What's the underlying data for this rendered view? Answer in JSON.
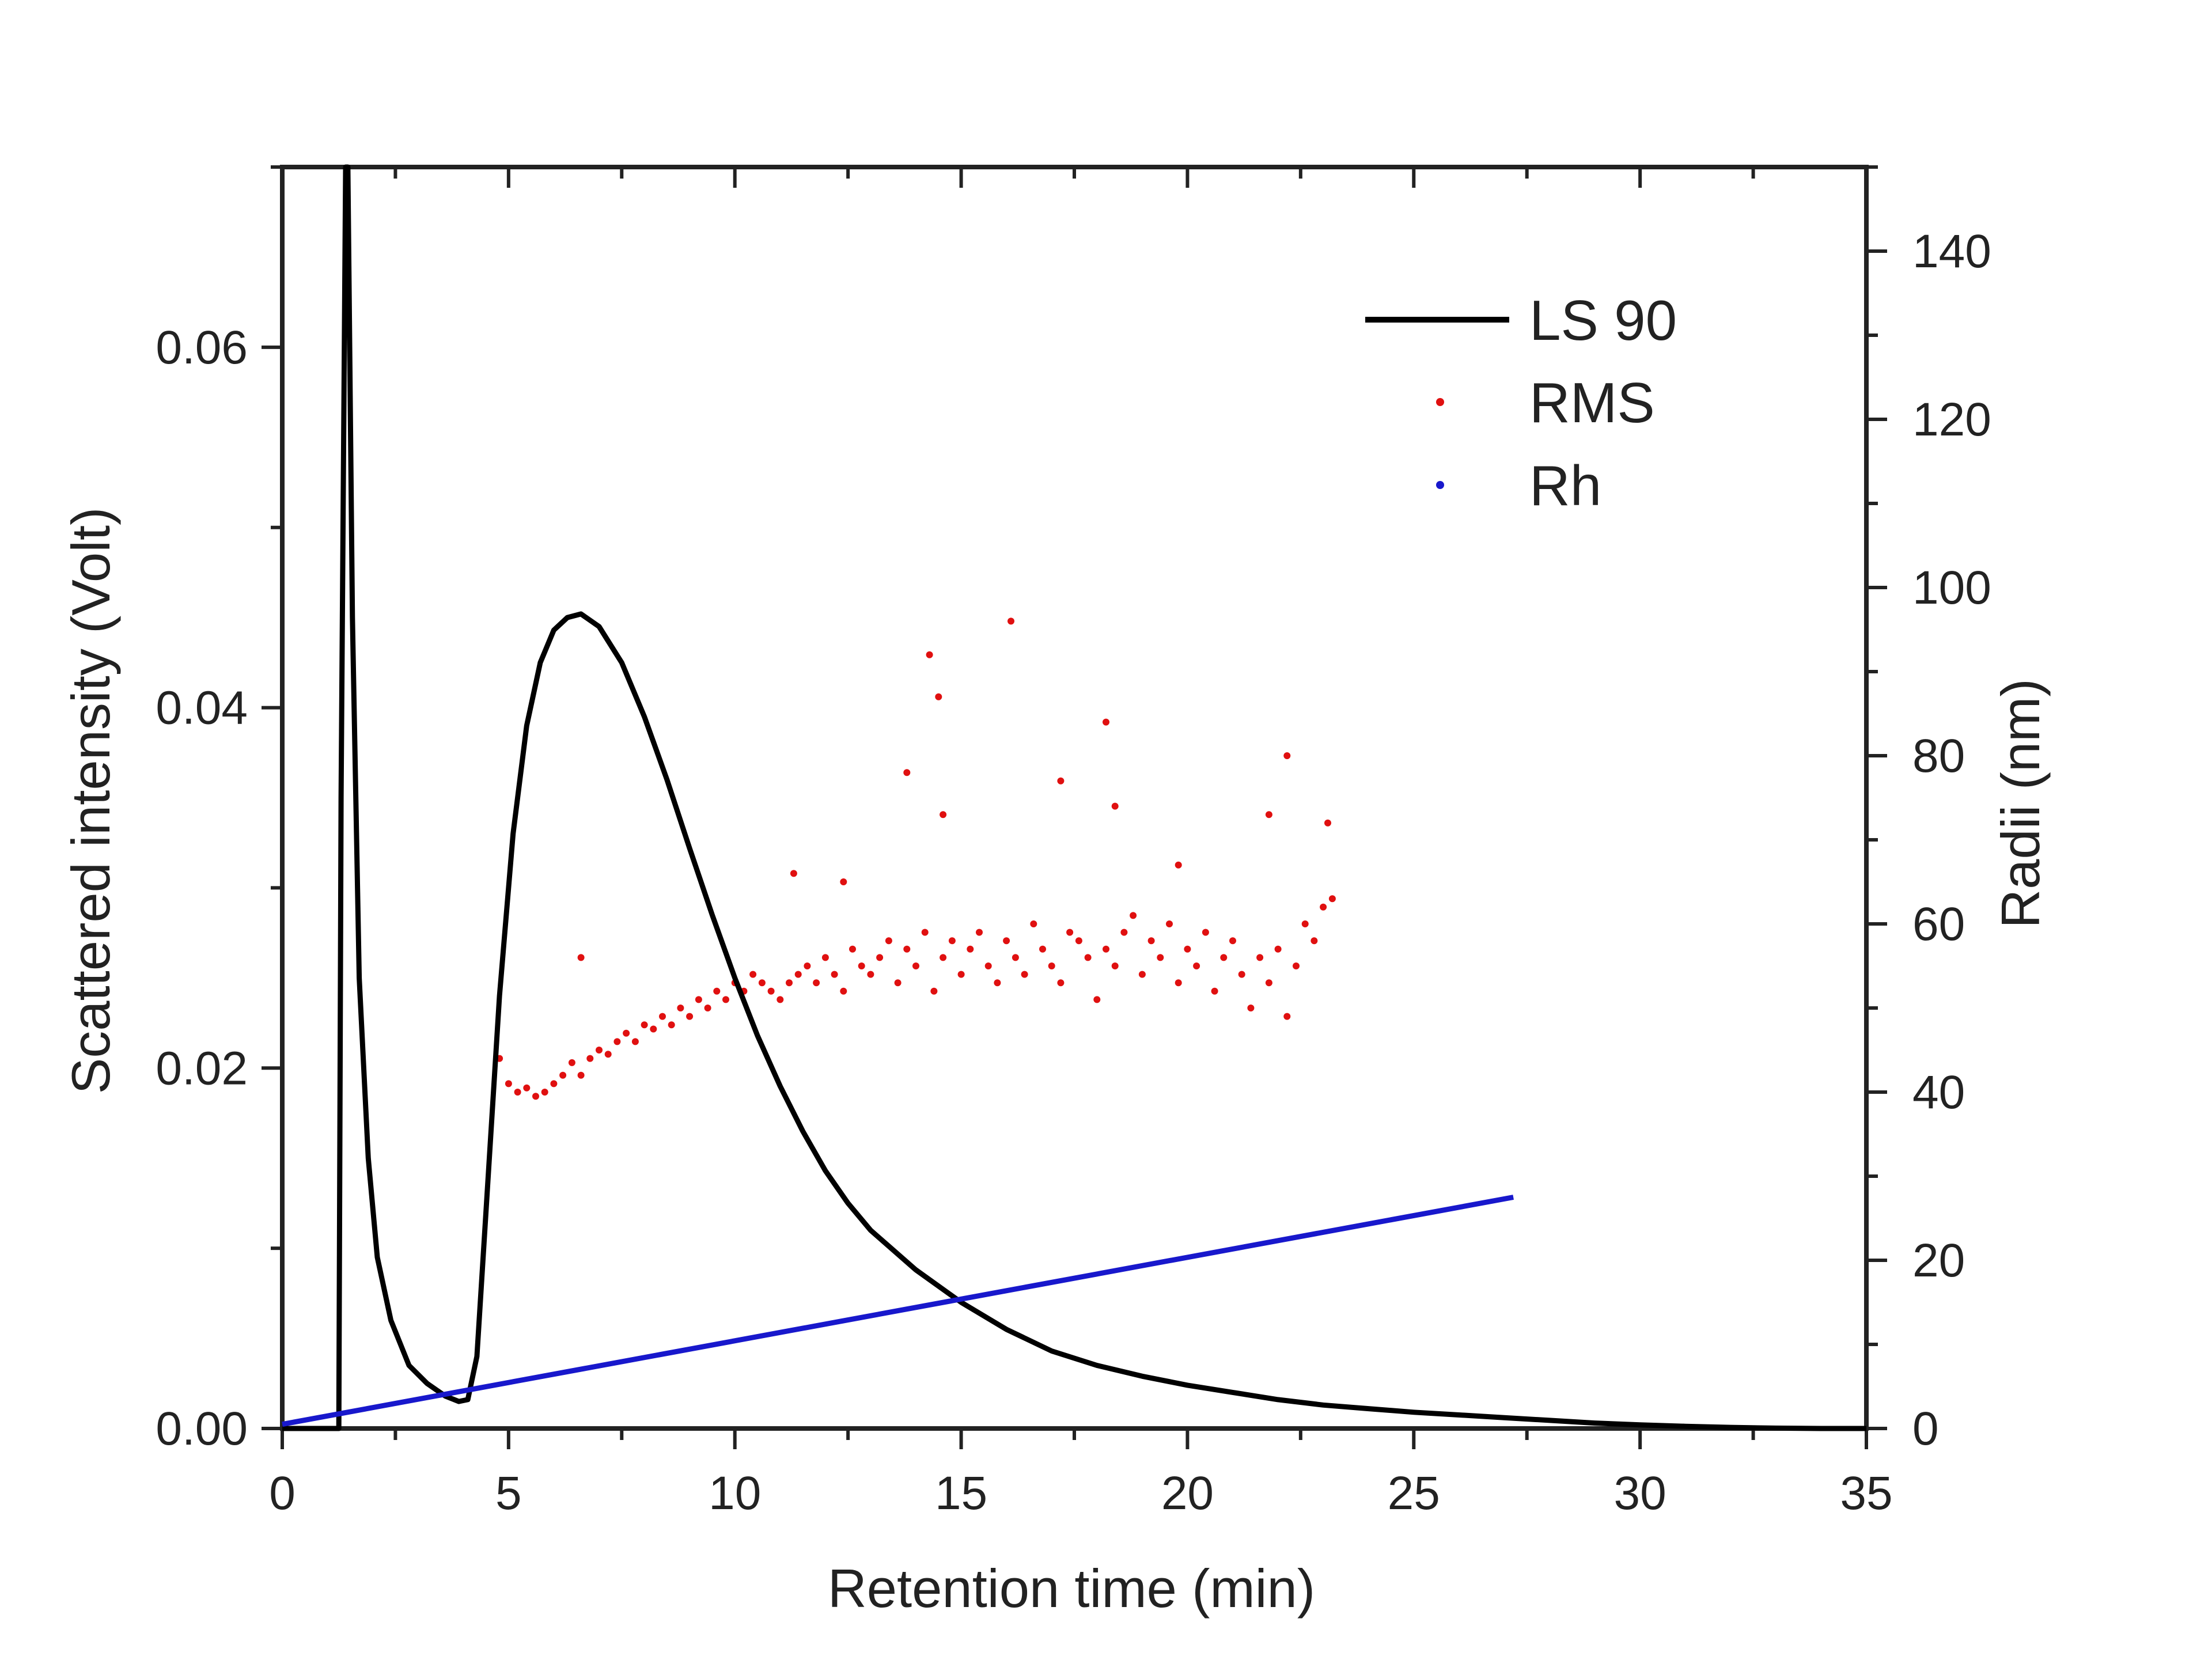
{
  "chart_data": {
    "type": "line",
    "title": "",
    "xlabel": "Retention time (min)",
    "ylabel_left": "Scattered intensity (Volt)",
    "ylabel_right": "Radii (nm)",
    "xlim": [
      0,
      35
    ],
    "ylim_left": [
      0,
      0.07
    ],
    "ylim_right": [
      0,
      150
    ],
    "x_ticks": [
      "0",
      "5",
      "10",
      "15",
      "20",
      "25",
      "30",
      "35"
    ],
    "y_left_ticks": [
      "0.00",
      "0.02",
      "0.04",
      "0.06"
    ],
    "y_right_ticks": [
      "0",
      "20",
      "40",
      "60",
      "80",
      "100",
      "120",
      "140"
    ],
    "grid": false,
    "legend_position": "top-right",
    "colors": {
      "ls90": "#000000",
      "rms": "#e01010",
      "rh": "#1818cc",
      "axis": "#222222"
    },
    "series": [
      {
        "name": "LS 90",
        "axis": "left",
        "style": "line",
        "x": [
          0,
          1.0,
          1.25,
          1.3,
          1.4,
          1.45,
          1.55,
          1.7,
          1.9,
          2.1,
          2.4,
          2.8,
          3.2,
          3.6,
          3.9,
          4.1,
          4.3,
          4.5,
          4.8,
          5.1,
          5.4,
          5.7,
          6.0,
          6.3,
          6.6,
          7.0,
          7.5,
          8.0,
          8.5,
          9.0,
          9.5,
          10.0,
          10.5,
          11.0,
          11.5,
          12.0,
          12.5,
          13.0,
          14.0,
          15.0,
          16.0,
          17.0,
          18.0,
          19.0,
          20.0,
          21.0,
          22.0,
          23.0,
          24.0,
          25.0,
          26.0,
          27.0,
          28.0,
          29.0,
          30.0,
          31.0,
          32.0,
          33.0,
          34.0,
          35.0
        ],
        "y": [
          0,
          0,
          0.0,
          0.035,
          0.07,
          0.07,
          0.045,
          0.025,
          0.015,
          0.0095,
          0.006,
          0.0035,
          0.0025,
          0.0018,
          0.0015,
          0.0016,
          0.004,
          0.012,
          0.024,
          0.033,
          0.039,
          0.0425,
          0.0443,
          0.045,
          0.0452,
          0.0445,
          0.0425,
          0.0395,
          0.036,
          0.0322,
          0.0285,
          0.025,
          0.0218,
          0.019,
          0.0165,
          0.0143,
          0.0125,
          0.011,
          0.0088,
          0.007,
          0.0055,
          0.0043,
          0.0035,
          0.0029,
          0.0024,
          0.002,
          0.0016,
          0.0013,
          0.0011,
          0.0009,
          0.00075,
          0.0006,
          0.00045,
          0.0003,
          0.0002,
          0.00012,
          6e-05,
          2e-05,
          0.0,
          0.0
        ]
      },
      {
        "name": "RMS",
        "axis": "right",
        "style": "markers",
        "x": [
          4.8,
          5.0,
          5.2,
          5.4,
          5.6,
          5.8,
          6.0,
          6.2,
          6.4,
          6.6,
          6.8,
          7.0,
          7.2,
          7.4,
          7.6,
          7.8,
          8.0,
          8.2,
          8.4,
          8.6,
          8.8,
          9.0,
          9.2,
          9.4,
          9.6,
          9.8,
          10.0,
          10.2,
          10.4,
          10.6,
          10.8,
          11.0,
          11.2,
          11.4,
          11.6,
          11.8,
          12.0,
          12.2,
          12.4,
          12.6,
          12.8,
          13.0,
          13.2,
          13.4,
          13.6,
          13.8,
          14.0,
          14.2,
          14.4,
          14.6,
          14.8,
          15.0,
          15.2,
          15.4,
          15.6,
          15.8,
          16.0,
          16.2,
          16.4,
          16.6,
          16.8,
          17.0,
          17.2,
          17.4,
          17.6,
          17.8,
          18.0,
          18.2,
          18.4,
          18.6,
          18.8,
          19.0,
          19.2,
          19.4,
          19.6,
          19.8,
          20.0,
          20.2,
          20.4,
          20.6,
          20.8,
          21.0,
          21.2,
          21.4,
          21.6,
          21.8,
          22.0,
          22.2,
          22.4,
          22.6,
          22.8,
          23.0,
          23.2,
          6.6,
          11.3,
          12.4,
          13.8,
          14.3,
          14.5,
          14.6,
          16.1,
          17.2,
          18.2,
          18.4,
          22.2,
          21.8,
          23.1,
          19.8
        ],
        "y": [
          44,
          41,
          40,
          40.5,
          39.5,
          40,
          41,
          42,
          43.5,
          42,
          44,
          45,
          44.5,
          46,
          47,
          46,
          48,
          47.5,
          49,
          48,
          50,
          49,
          51,
          50,
          52,
          51,
          53,
          52,
          54,
          53,
          52,
          51,
          53,
          54,
          55,
          53,
          56,
          54,
          52,
          57,
          55,
          54,
          56,
          58,
          53,
          57,
          55,
          59,
          52,
          56,
          58,
          54,
          57,
          59,
          55,
          53,
          58,
          56,
          54,
          60,
          57,
          55,
          53,
          59,
          58,
          56,
          51,
          57,
          55,
          59,
          61,
          54,
          58,
          56,
          60,
          53,
          57,
          55,
          59,
          52,
          56,
          58,
          54,
          50,
          56,
          53,
          57,
          49,
          55,
          60,
          58,
          62,
          63,
          56,
          66,
          65,
          78,
          92,
          87,
          73,
          96,
          77,
          84,
          74,
          80,
          73,
          72,
          67
        ],
        "marker_size": 6
      },
      {
        "name": "Rh",
        "axis": "right",
        "style": "line",
        "x": [
          0,
          27.2
        ],
        "y": [
          0.5,
          27.5
        ]
      }
    ]
  },
  "legend": {
    "ls90_label": "LS 90",
    "rms_label": "RMS",
    "rh_label": "Rh"
  }
}
